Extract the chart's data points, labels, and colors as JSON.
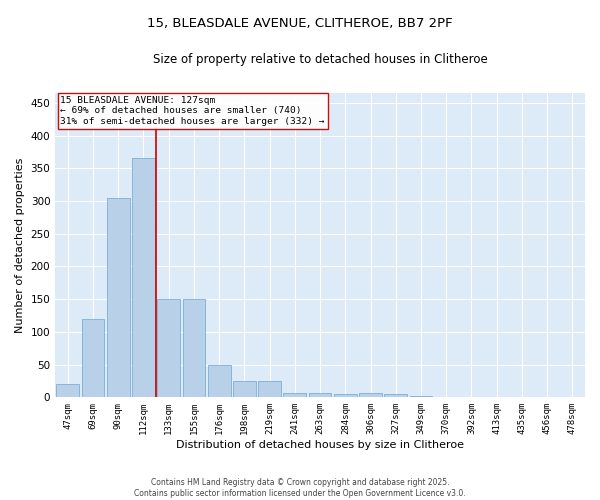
{
  "title": "15, BLEASDALE AVENUE, CLITHEROE, BB7 2PF",
  "subtitle": "Size of property relative to detached houses in Clitheroe",
  "xlabel": "Distribution of detached houses by size in Clitheroe",
  "ylabel": "Number of detached properties",
  "bar_color": "#b8d0e8",
  "bar_edge_color": "#7aafd4",
  "bg_color": "#ddeaf7",
  "grid_color": "#ffffff",
  "categories": [
    "47sqm",
    "69sqm",
    "90sqm",
    "112sqm",
    "133sqm",
    "155sqm",
    "176sqm",
    "198sqm",
    "219sqm",
    "241sqm",
    "263sqm",
    "284sqm",
    "306sqm",
    "327sqm",
    "349sqm",
    "370sqm",
    "392sqm",
    "413sqm",
    "435sqm",
    "456sqm",
    "478sqm"
  ],
  "values": [
    20,
    120,
    305,
    365,
    150,
    150,
    50,
    25,
    25,
    7,
    7,
    5,
    7,
    5,
    2,
    1,
    0,
    1,
    0,
    0,
    1
  ],
  "property_label": "15 BLEASDALE AVENUE: 127sqm",
  "annotation_line1": "← 69% of detached houses are smaller (740)",
  "annotation_line2": "31% of semi-detached houses are larger (332) →",
  "vline_color": "#cc0000",
  "annotation_box_edge": "#cc0000",
  "ylim": [
    0,
    465
  ],
  "yticks": [
    0,
    50,
    100,
    150,
    200,
    250,
    300,
    350,
    400,
    450
  ],
  "footer_line1": "Contains HM Land Registry data © Crown copyright and database right 2025.",
  "footer_line2": "Contains public sector information licensed under the Open Government Licence v3.0."
}
